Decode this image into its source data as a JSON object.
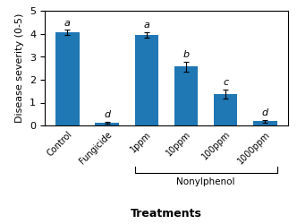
{
  "chart_data": {
    "type": "bar",
    "categories": [
      "Control",
      "Fungicide",
      "1ppm",
      "10ppm",
      "100ppm",
      "1000ppm"
    ],
    "values": [
      4.08,
      0.12,
      3.95,
      2.58,
      1.38,
      0.18
    ],
    "errors": [
      0.1,
      0.05,
      0.12,
      0.22,
      0.2,
      0.06
    ],
    "y_label": "Disease severity (0-5)",
    "x_label": "Treatments",
    "ylim": [
      0,
      5
    ],
    "yticks": [
      0,
      1,
      2,
      3,
      4,
      5
    ],
    "annotations": [
      {
        "text": "a",
        "category": "Control"
      },
      {
        "text": "d",
        "category": "Fungicide"
      },
      {
        "text": "a",
        "category": "1ppm"
      },
      {
        "text": "b",
        "category": "10ppm"
      },
      {
        "text": "c",
        "category": "100ppm"
      },
      {
        "text": "d",
        "category": "1000ppm"
      },
      {
        "text": "Nonylphenol",
        "categories": [
          "1ppm",
          "1000ppm"
        ]
      }
    ]
  }
}
